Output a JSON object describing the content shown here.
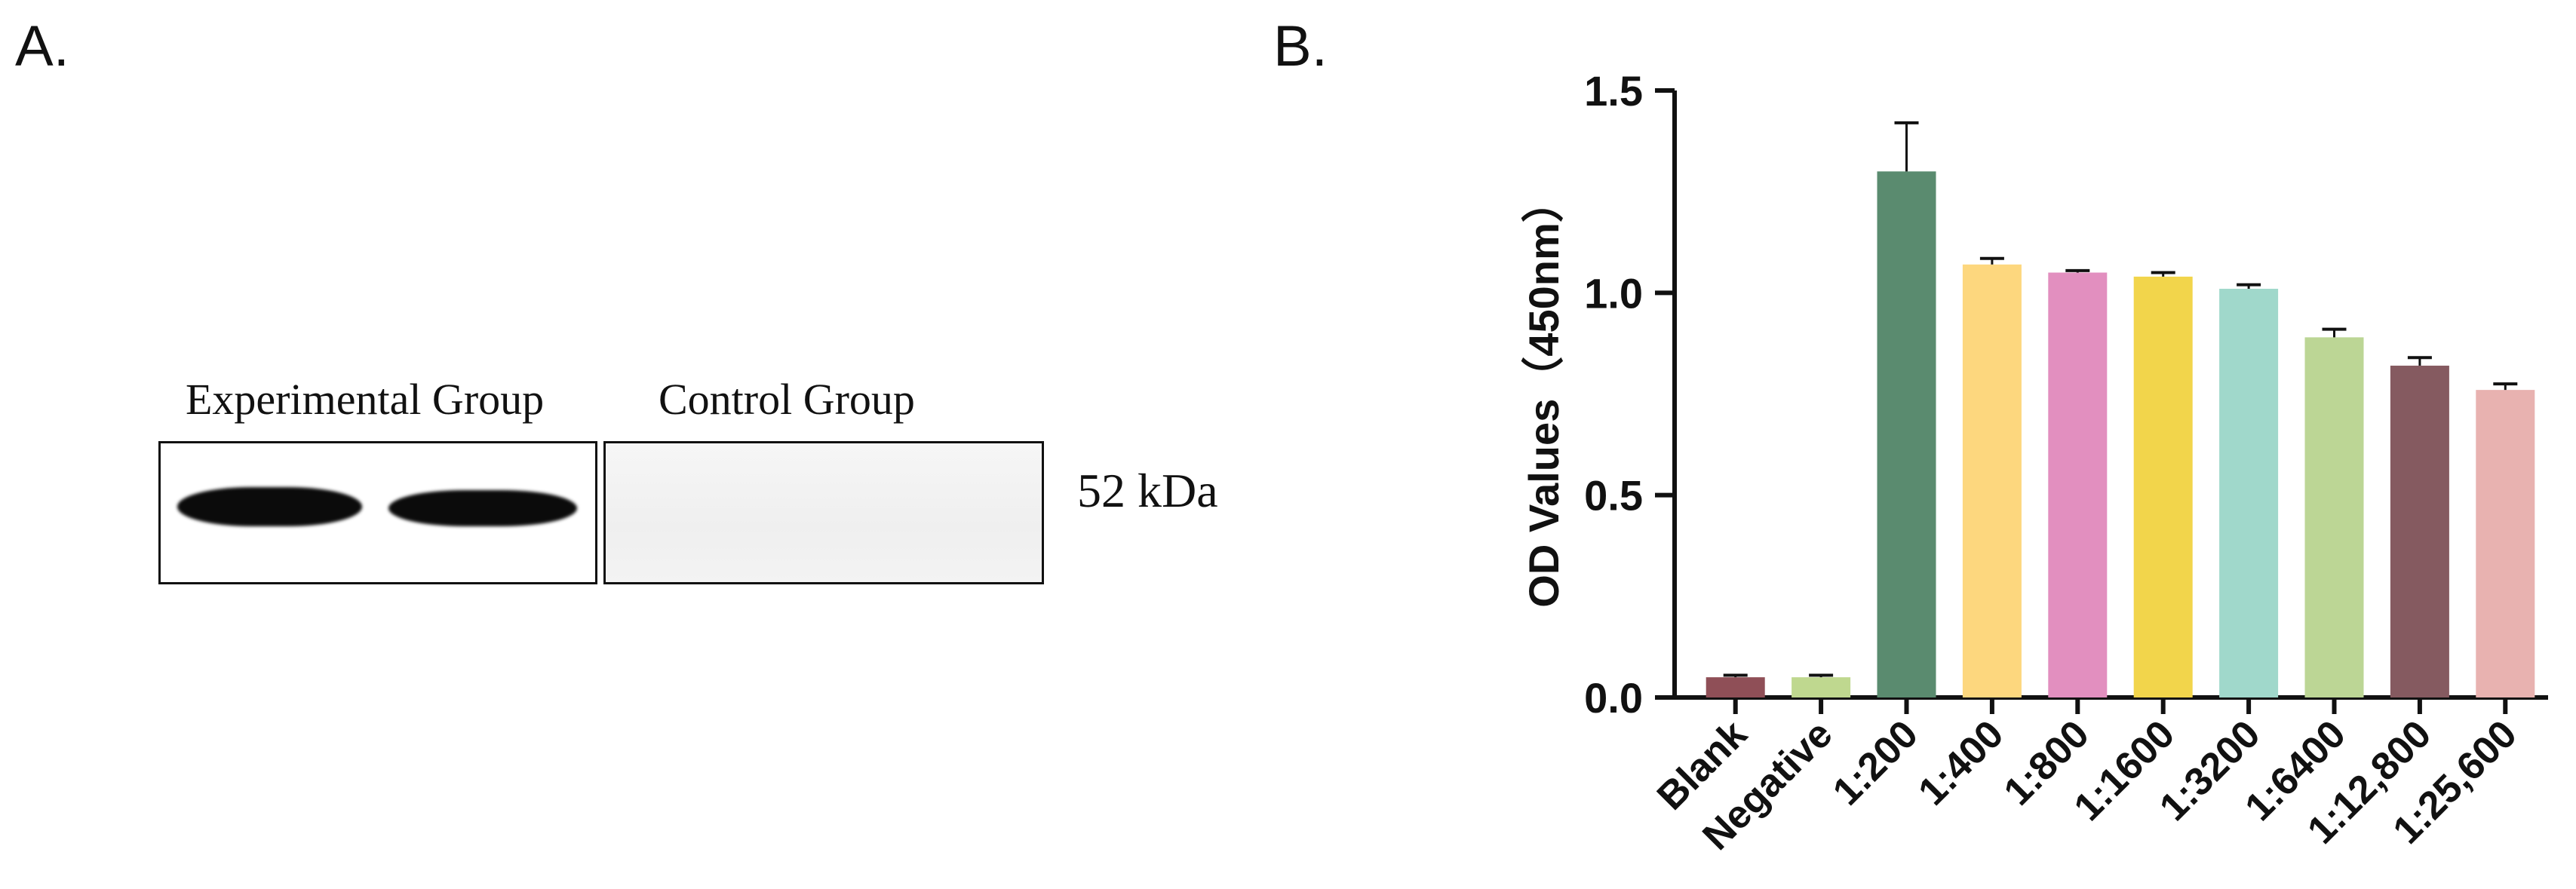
{
  "panels": {
    "a": {
      "label": "A.",
      "lane_group_labels": [
        "Experimental Group",
        "Control Group"
      ],
      "marker": "52 kDa"
    },
    "b": {
      "label": "B."
    }
  },
  "chart_data": {
    "type": "bar",
    "title": "",
    "xlabel": "",
    "ylabel": "OD Values（450nm）",
    "ylim": [
      0,
      1.5
    ],
    "yticks": [
      "0.0",
      "0.5",
      "1.0",
      "1.5"
    ],
    "yticks_values": [
      0,
      0.5,
      1.0,
      1.5
    ],
    "categories": [
      "Blank",
      "Negative",
      "1:200",
      "1:400",
      "1:800",
      "1:1600",
      "1:3200",
      "1:6400",
      "1:12,800",
      "1:25,600"
    ],
    "values": [
      0.05,
      0.05,
      1.3,
      1.07,
      1.05,
      1.04,
      1.01,
      0.89,
      0.82,
      0.76
    ],
    "errors": [
      0.005,
      0.005,
      0.12,
      0.015,
      0.005,
      0.01,
      0.01,
      0.02,
      0.02,
      0.015
    ],
    "colors": [
      "#8f4f57",
      "#bfd88f",
      "#5a8b6f",
      "#fdd77e",
      "#e28fbf",
      "#f2d54b",
      "#a0d8cb",
      "#bcd695",
      "#855a60",
      "#e8b2b0"
    ],
    "grid": false,
    "legend": "none"
  }
}
